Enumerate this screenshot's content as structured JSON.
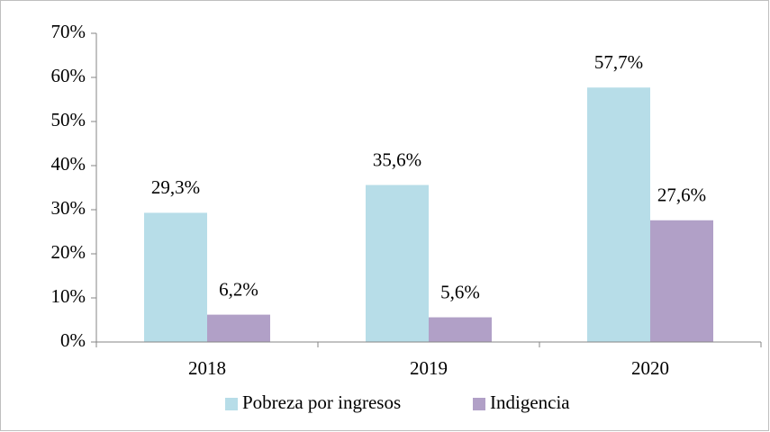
{
  "chart_data": {
    "type": "bar",
    "categories": [
      "2018",
      "2019",
      "2020"
    ],
    "series": [
      {
        "name": "Pobreza por ingresos",
        "color": "#b7dde8",
        "values": [
          29.3,
          35.6,
          57.7
        ],
        "value_labels": [
          "29,3%",
          "35,6%",
          "57,7%"
        ]
      },
      {
        "name": "Indigencia",
        "color": "#b1a0c7",
        "values": [
          6.2,
          5.6,
          27.6
        ],
        "value_labels": [
          "6,2%",
          "5,6%",
          "27,6%"
        ]
      }
    ],
    "ylim": [
      0,
      70
    ],
    "yticks": [
      {
        "value": 0,
        "label": "0%"
      },
      {
        "value": 10,
        "label": "10%"
      },
      {
        "value": 20,
        "label": "20%"
      },
      {
        "value": 30,
        "label": "30%"
      },
      {
        "value": 40,
        "label": "40%"
      },
      {
        "value": 50,
        "label": "50%"
      },
      {
        "value": 60,
        "label": "60%"
      },
      {
        "value": 70,
        "label": "70%"
      }
    ],
    "grid": false,
    "legend": "bottom"
  }
}
